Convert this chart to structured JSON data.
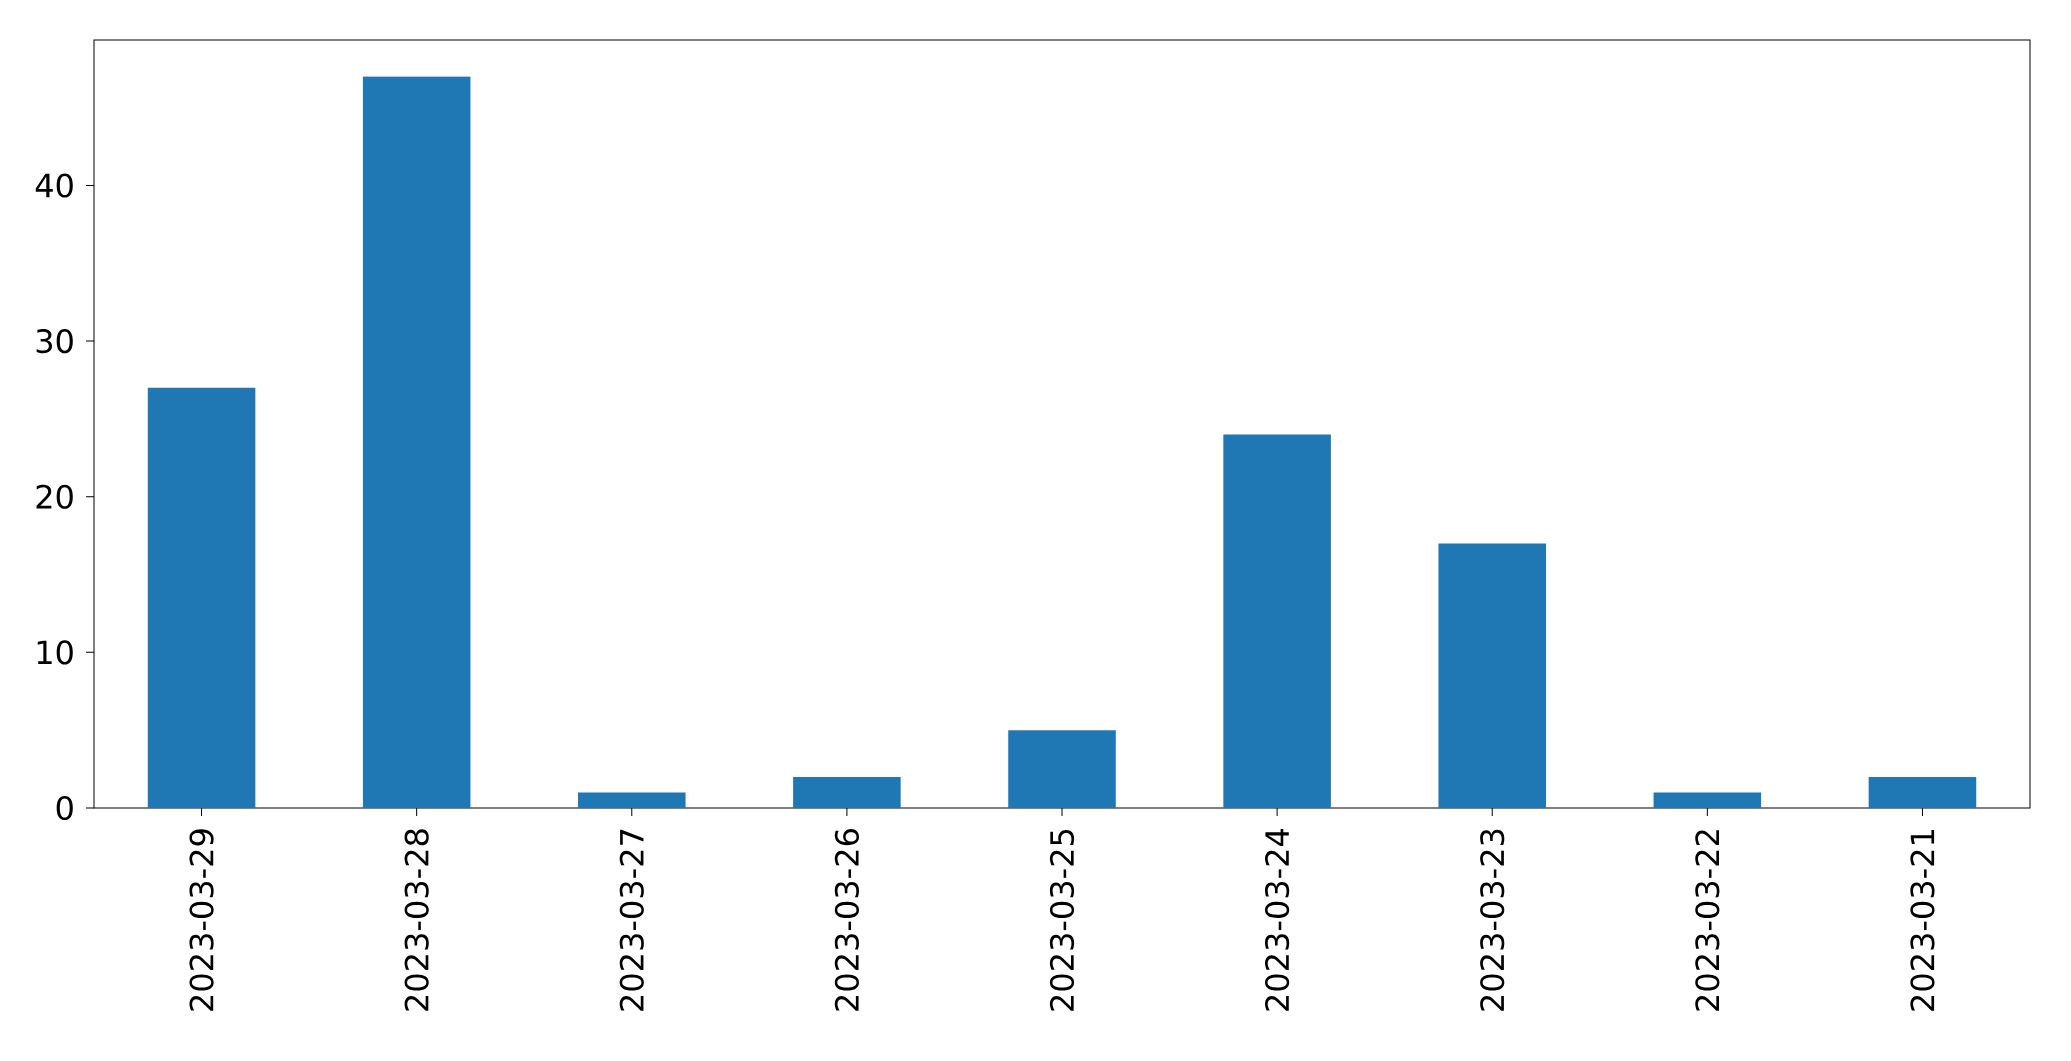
{
  "chart_data": {
    "type": "bar",
    "categories": [
      "2023-03-29",
      "2023-03-28",
      "2023-03-27",
      "2023-03-26",
      "2023-03-25",
      "2023-03-24",
      "2023-03-23",
      "2023-03-22",
      "2023-03-21"
    ],
    "values": [
      27,
      47,
      1,
      2,
      5,
      24,
      17,
      1,
      2
    ],
    "color": "#1f77b4",
    "ylim": [
      0,
      49.35
    ],
    "yticks": [
      0,
      10,
      20,
      30,
      40
    ]
  }
}
